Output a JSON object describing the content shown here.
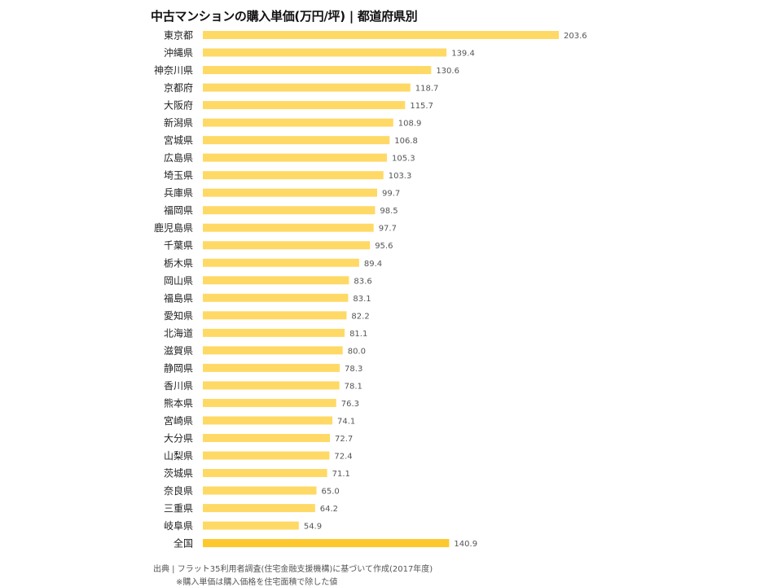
{
  "title": "中古マンションの購入単価(万円/坪) | 都道府県別",
  "colors": {
    "bar": "#ffd966",
    "highlight_bar": "#fcc82e",
    "value_text": "#555555",
    "label_text": "#222222"
  },
  "chart_data": {
    "type": "bar",
    "orientation": "horizontal",
    "title": "中古マンションの購入単価(万円/坪) | 都道府県別",
    "categories": [
      "東京都",
      "沖縄県",
      "神奈川県",
      "京都府",
      "大阪府",
      "新潟県",
      "宮城県",
      "広島県",
      "埼玉県",
      "兵庫県",
      "福岡県",
      "鹿児島県",
      "千葉県",
      "栃木県",
      "岡山県",
      "福島県",
      "愛知県",
      "北海道",
      "滋賀県",
      "静岡県",
      "香川県",
      "熊本県",
      "宮崎県",
      "大分県",
      "山梨県",
      "茨城県",
      "奈良県",
      "三重県",
      "岐阜県",
      "全国"
    ],
    "values": [
      203.6,
      139.4,
      130.6,
      118.7,
      115.7,
      108.9,
      106.8,
      105.3,
      103.3,
      99.7,
      98.5,
      97.7,
      95.6,
      89.4,
      83.6,
      83.1,
      82.2,
      81.1,
      80.0,
      78.3,
      78.1,
      76.3,
      74.1,
      72.7,
      72.4,
      71.1,
      65.0,
      64.2,
      54.9,
      140.9
    ],
    "value_labels": [
      "203.6",
      "139.4",
      "130.6",
      "118.7",
      "115.7",
      "108.9",
      "106.8",
      "105.3",
      "103.3",
      "99.7",
      "98.5",
      "97.7",
      "95.6",
      "89.4",
      "83.6",
      "83.1",
      "82.2",
      "81.1",
      "80.0",
      "78.3",
      "78.1",
      "76.3",
      "74.1",
      "72.7",
      "72.4",
      "71.1",
      "65.0",
      "64.2",
      "54.9",
      "140.9"
    ],
    "highlight_category": "全国",
    "xlim": [
      0,
      203.6
    ],
    "grid": false,
    "legend": "none"
  },
  "footer": {
    "source": "出典 | フラット35利用者調査(住宅金融支援機構)に基づいて作成(2017年度)",
    "note": "※購入単価は購入価格を住宅面積で除した値"
  }
}
